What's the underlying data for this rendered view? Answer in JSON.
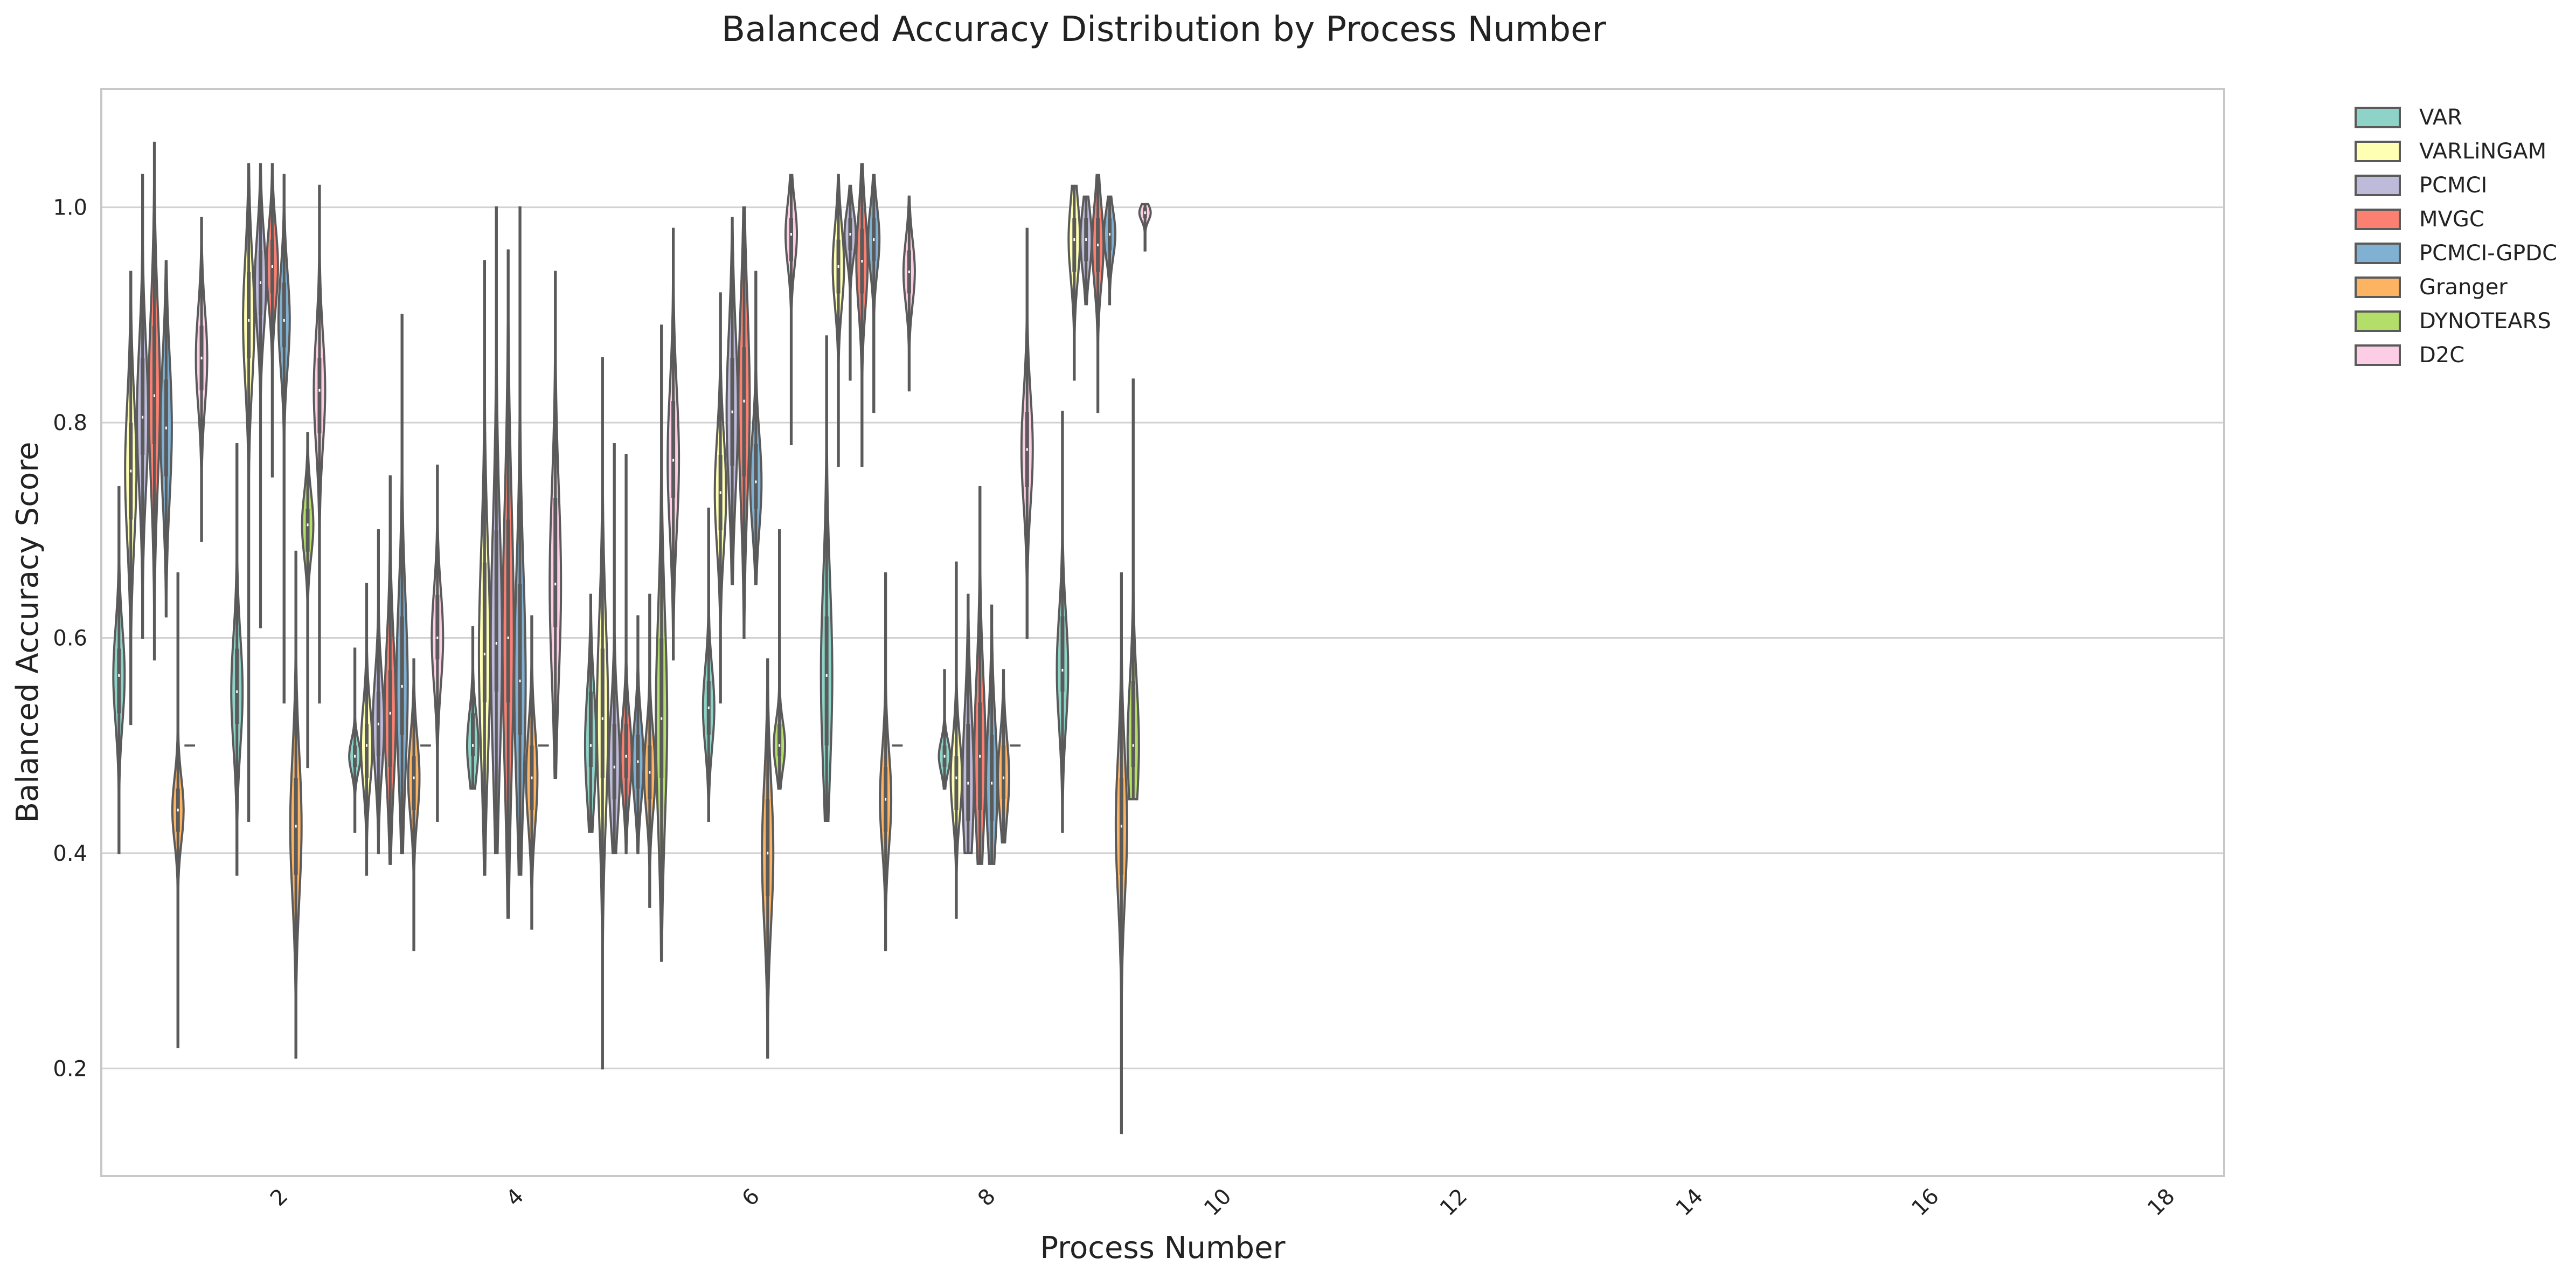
{
  "chart_data": {
    "type": "violin",
    "title": "Balanced Accuracy Distribution by Process Number",
    "xlabel": "Process Number",
    "ylabel": "Balanced Accuracy Score",
    "ylim": [
      0.1,
      1.11
    ],
    "yticks": [
      0.2,
      0.4,
      0.6,
      0.8,
      1.0
    ],
    "ytick_labels": [
      "0.2",
      "0.4",
      "0.6",
      "0.8",
      "1.0"
    ],
    "categories": [
      1,
      2,
      3,
      4,
      5,
      6,
      7,
      8,
      9,
      10,
      11,
      12,
      13,
      14,
      15,
      16,
      17,
      18
    ],
    "xtick_labels": [
      "2",
      "4",
      "6",
      "8",
      "10",
      "12",
      "14",
      "16",
      "18"
    ],
    "grid": "horizontal",
    "legend_position": "outside-top-right",
    "series": [
      {
        "name": "VAR",
        "color": "#8dd3c7"
      },
      {
        "name": "VARLiNGAM",
        "color": "#ffffb3"
      },
      {
        "name": "PCMCI",
        "color": "#bebada"
      },
      {
        "name": "MVGC",
        "color": "#fb8072"
      },
      {
        "name": "PCMCI-GPDC",
        "color": "#80b1d3"
      },
      {
        "name": "Granger",
        "color": "#fdb462"
      },
      {
        "name": "DYNOTEARS",
        "color": "#b3de69"
      },
      {
        "name": "D2C",
        "color": "#fccde5"
      }
    ],
    "distributions": [
      {
        "process": 1,
        "series": "VAR",
        "min": 0.4,
        "q1": 0.53,
        "median": 0.565,
        "q3": 0.59,
        "max": 0.74
      },
      {
        "process": 1,
        "series": "VARLiNGAM",
        "min": 0.52,
        "q1": 0.71,
        "median": 0.755,
        "q3": 0.8,
        "max": 0.94
      },
      {
        "process": 1,
        "series": "PCMCI",
        "min": 0.6,
        "q1": 0.77,
        "median": 0.805,
        "q3": 0.86,
        "max": 1.03
      },
      {
        "process": 1,
        "series": "MVGC",
        "min": 0.58,
        "q1": 0.78,
        "median": 0.825,
        "q3": 0.89,
        "max": 1.06
      },
      {
        "process": 1,
        "series": "PCMCI-GPDC",
        "min": 0.62,
        "q1": 0.75,
        "median": 0.795,
        "q3": 0.84,
        "max": 0.95
      },
      {
        "process": 1,
        "series": "Granger",
        "min": 0.22,
        "q1": 0.42,
        "median": 0.44,
        "q3": 0.46,
        "max": 0.66
      },
      {
        "process": 1,
        "series": "DYNOTEARS",
        "min": 0.5,
        "q1": 0.5,
        "median": 0.5,
        "q3": 0.5,
        "max": 0.5
      },
      {
        "process": 1,
        "series": "D2C",
        "min": 0.69,
        "q1": 0.83,
        "median": 0.86,
        "q3": 0.89,
        "max": 0.99
      },
      {
        "process": 2,
        "series": "VAR",
        "min": 0.38,
        "q1": 0.52,
        "median": 0.55,
        "q3": 0.59,
        "max": 0.78
      },
      {
        "process": 2,
        "series": "VARLiNGAM",
        "min": 0.43,
        "q1": 0.86,
        "median": 0.895,
        "q3": 0.94,
        "max": 1.04
      },
      {
        "process": 2,
        "series": "PCMCI",
        "min": 0.61,
        "q1": 0.9,
        "median": 0.93,
        "q3": 0.96,
        "max": 1.04
      },
      {
        "process": 2,
        "series": "MVGC",
        "min": 0.75,
        "q1": 0.92,
        "median": 0.945,
        "q3": 0.97,
        "max": 1.04
      },
      {
        "process": 2,
        "series": "PCMCI-GPDC",
        "min": 0.54,
        "q1": 0.87,
        "median": 0.895,
        "q3": 0.93,
        "max": 1.03
      },
      {
        "process": 2,
        "series": "Granger",
        "min": 0.21,
        "q1": 0.38,
        "median": 0.425,
        "q3": 0.47,
        "max": 0.68
      },
      {
        "process": 2,
        "series": "DYNOTEARS",
        "min": 0.48,
        "q1": 0.68,
        "median": 0.705,
        "q3": 0.72,
        "max": 0.79
      },
      {
        "process": 2,
        "series": "D2C",
        "min": 0.54,
        "q1": 0.79,
        "median": 0.83,
        "q3": 0.86,
        "max": 1.02
      },
      {
        "process": 3,
        "series": "VAR",
        "min": 0.42,
        "q1": 0.48,
        "median": 0.49,
        "q3": 0.5,
        "max": 0.59
      },
      {
        "process": 3,
        "series": "VARLiNGAM",
        "min": 0.38,
        "q1": 0.47,
        "median": 0.5,
        "q3": 0.52,
        "max": 0.65
      },
      {
        "process": 3,
        "series": "PCMCI",
        "min": 0.4,
        "q1": 0.49,
        "median": 0.52,
        "q3": 0.55,
        "max": 0.7
      },
      {
        "process": 3,
        "series": "MVGC",
        "min": 0.39,
        "q1": 0.48,
        "median": 0.53,
        "q3": 0.57,
        "max": 0.75
      },
      {
        "process": 3,
        "series": "PCMCI-GPDC",
        "min": 0.4,
        "q1": 0.51,
        "median": 0.555,
        "q3": 0.62,
        "max": 0.9
      },
      {
        "process": 3,
        "series": "Granger",
        "min": 0.31,
        "q1": 0.44,
        "median": 0.47,
        "q3": 0.49,
        "max": 0.58
      },
      {
        "process": 3,
        "series": "DYNOTEARS",
        "min": 0.5,
        "q1": 0.5,
        "median": 0.5,
        "q3": 0.5,
        "max": 0.5
      },
      {
        "process": 3,
        "series": "D2C",
        "min": 0.43,
        "q1": 0.58,
        "median": 0.6,
        "q3": 0.64,
        "max": 0.76
      },
      {
        "process": 4,
        "series": "VAR",
        "min": 0.46,
        "q1": 0.49,
        "median": 0.5,
        "q3": 0.53,
        "max": 0.61
      },
      {
        "process": 4,
        "series": "VARLiNGAM",
        "min": 0.38,
        "q1": 0.54,
        "median": 0.585,
        "q3": 0.67,
        "max": 0.95
      },
      {
        "process": 4,
        "series": "PCMCI",
        "min": 0.4,
        "q1": 0.55,
        "median": 0.595,
        "q3": 0.7,
        "max": 1.0
      },
      {
        "process": 4,
        "series": "MVGC",
        "min": 0.34,
        "q1": 0.54,
        "median": 0.6,
        "q3": 0.71,
        "max": 0.96
      },
      {
        "process": 4,
        "series": "PCMCI-GPDC",
        "min": 0.38,
        "q1": 0.51,
        "median": 0.56,
        "q3": 0.65,
        "max": 1.0
      },
      {
        "process": 4,
        "series": "Granger",
        "min": 0.33,
        "q1": 0.44,
        "median": 0.47,
        "q3": 0.5,
        "max": 0.62
      },
      {
        "process": 4,
        "series": "DYNOTEARS",
        "min": 0.5,
        "q1": 0.5,
        "median": 0.5,
        "q3": 0.5,
        "max": 0.5
      },
      {
        "process": 4,
        "series": "D2C",
        "min": 0.47,
        "q1": 0.61,
        "median": 0.65,
        "q3": 0.73,
        "max": 0.94
      },
      {
        "process": 5,
        "series": "VAR",
        "min": 0.42,
        "q1": 0.48,
        "median": 0.5,
        "q3": 0.55,
        "max": 0.64
      },
      {
        "process": 5,
        "series": "VARLiNGAM",
        "min": 0.2,
        "q1": 0.47,
        "median": 0.525,
        "q3": 0.59,
        "max": 0.86
      },
      {
        "process": 5,
        "series": "PCMCI",
        "min": 0.4,
        "q1": 0.45,
        "median": 0.48,
        "q3": 0.52,
        "max": 0.78
      },
      {
        "process": 5,
        "series": "MVGC",
        "min": 0.4,
        "q1": 0.47,
        "median": 0.49,
        "q3": 0.52,
        "max": 0.77
      },
      {
        "process": 5,
        "series": "PCMCI-GPDC",
        "min": 0.4,
        "q1": 0.46,
        "median": 0.485,
        "q3": 0.51,
        "max": 0.62
      },
      {
        "process": 5,
        "series": "Granger",
        "min": 0.35,
        "q1": 0.45,
        "median": 0.475,
        "q3": 0.5,
        "max": 0.64
      },
      {
        "process": 5,
        "series": "DYNOTEARS",
        "min": 0.3,
        "q1": 0.47,
        "median": 0.525,
        "q3": 0.6,
        "max": 0.89
      },
      {
        "process": 5,
        "series": "D2C",
        "min": 0.58,
        "q1": 0.73,
        "median": 0.765,
        "q3": 0.82,
        "max": 0.98
      },
      {
        "process": 6,
        "series": "VAR",
        "min": 0.43,
        "q1": 0.51,
        "median": 0.535,
        "q3": 0.56,
        "max": 0.72
      },
      {
        "process": 6,
        "series": "VARLiNGAM",
        "min": 0.54,
        "q1": 0.7,
        "median": 0.735,
        "q3": 0.77,
        "max": 0.92
      },
      {
        "process": 6,
        "series": "PCMCI",
        "min": 0.65,
        "q1": 0.76,
        "median": 0.81,
        "q3": 0.86,
        "max": 0.99
      },
      {
        "process": 6,
        "series": "MVGC",
        "min": 0.6,
        "q1": 0.75,
        "median": 0.82,
        "q3": 0.87,
        "max": 1.0
      },
      {
        "process": 6,
        "series": "PCMCI-GPDC",
        "min": 0.65,
        "q1": 0.72,
        "median": 0.745,
        "q3": 0.78,
        "max": 0.94
      },
      {
        "process": 6,
        "series": "Granger",
        "min": 0.21,
        "q1": 0.36,
        "median": 0.4,
        "q3": 0.45,
        "max": 0.58
      },
      {
        "process": 6,
        "series": "DYNOTEARS",
        "min": 0.46,
        "q1": 0.49,
        "median": 0.5,
        "q3": 0.52,
        "max": 0.7
      },
      {
        "process": 6,
        "series": "D2C",
        "min": 0.78,
        "q1": 0.95,
        "median": 0.975,
        "q3": 0.99,
        "max": 1.03
      },
      {
        "process": 7,
        "series": "VAR",
        "min": 0.43,
        "q1": 0.5,
        "median": 0.565,
        "q3": 0.62,
        "max": 0.88
      },
      {
        "process": 7,
        "series": "VARLiNGAM",
        "min": 0.76,
        "q1": 0.92,
        "median": 0.945,
        "q3": 0.97,
        "max": 1.03
      },
      {
        "process": 7,
        "series": "PCMCI",
        "min": 0.84,
        "q1": 0.96,
        "median": 0.975,
        "q3": 0.99,
        "max": 1.02
      },
      {
        "process": 7,
        "series": "MVGC",
        "min": 0.76,
        "q1": 0.92,
        "median": 0.95,
        "q3": 0.98,
        "max": 1.04
      },
      {
        "process": 7,
        "series": "PCMCI-GPDC",
        "min": 0.81,
        "q1": 0.95,
        "median": 0.97,
        "q3": 0.99,
        "max": 1.03
      },
      {
        "process": 7,
        "series": "Granger",
        "min": 0.31,
        "q1": 0.42,
        "median": 0.45,
        "q3": 0.48,
        "max": 0.66
      },
      {
        "process": 7,
        "series": "DYNOTEARS",
        "min": 0.5,
        "q1": 0.5,
        "median": 0.5,
        "q3": 0.5,
        "max": 0.5
      },
      {
        "process": 7,
        "series": "D2C",
        "min": 0.83,
        "q1": 0.92,
        "median": 0.94,
        "q3": 0.96,
        "max": 1.01
      },
      {
        "process": 8,
        "series": "VAR",
        "min": 0.46,
        "q1": 0.48,
        "median": 0.49,
        "q3": 0.5,
        "max": 0.57
      },
      {
        "process": 8,
        "series": "VARLiNGAM",
        "min": 0.34,
        "q1": 0.44,
        "median": 0.47,
        "q3": 0.49,
        "max": 0.67
      },
      {
        "process": 8,
        "series": "PCMCI",
        "min": 0.4,
        "q1": 0.43,
        "median": 0.465,
        "q3": 0.52,
        "max": 0.64
      },
      {
        "process": 8,
        "series": "MVGC",
        "min": 0.39,
        "q1": 0.44,
        "median": 0.49,
        "q3": 0.54,
        "max": 0.74
      },
      {
        "process": 8,
        "series": "PCMCI-GPDC",
        "min": 0.39,
        "q1": 0.43,
        "median": 0.465,
        "q3": 0.51,
        "max": 0.63
      },
      {
        "process": 8,
        "series": "Granger",
        "min": 0.41,
        "q1": 0.45,
        "median": 0.47,
        "q3": 0.5,
        "max": 0.57
      },
      {
        "process": 8,
        "series": "DYNOTEARS",
        "min": 0.5,
        "q1": 0.5,
        "median": 0.5,
        "q3": 0.5,
        "max": 0.5
      },
      {
        "process": 8,
        "series": "D2C",
        "min": 0.6,
        "q1": 0.74,
        "median": 0.775,
        "q3": 0.81,
        "max": 0.98
      },
      {
        "process": 9,
        "series": "VAR",
        "min": 0.42,
        "q1": 0.55,
        "median": 0.57,
        "q3": 0.62,
        "max": 0.81
      },
      {
        "process": 9,
        "series": "VARLiNGAM",
        "min": 0.84,
        "q1": 0.94,
        "median": 0.97,
        "q3": 0.99,
        "max": 1.02
      },
      {
        "process": 9,
        "series": "PCMCI",
        "min": 0.91,
        "q1": 0.95,
        "median": 0.97,
        "q3": 0.99,
        "max": 1.01
      },
      {
        "process": 9,
        "series": "MVGC",
        "min": 0.81,
        "q1": 0.94,
        "median": 0.965,
        "q3": 0.99,
        "max": 1.03
      },
      {
        "process": 9,
        "series": "PCMCI-GPDC",
        "min": 0.91,
        "q1": 0.96,
        "median": 0.975,
        "q3": 0.99,
        "max": 1.01
      },
      {
        "process": 9,
        "series": "Granger",
        "min": 0.14,
        "q1": 0.38,
        "median": 0.425,
        "q3": 0.47,
        "max": 0.66
      },
      {
        "process": 9,
        "series": "DYNOTEARS",
        "min": 0.45,
        "q1": 0.48,
        "median": 0.5,
        "q3": 0.56,
        "max": 0.84
      },
      {
        "process": 9,
        "series": "D2C",
        "min": 0.96,
        "q1": 0.99,
        "median": 0.995,
        "q3": 1.0,
        "max": 1.003
      }
    ]
  }
}
